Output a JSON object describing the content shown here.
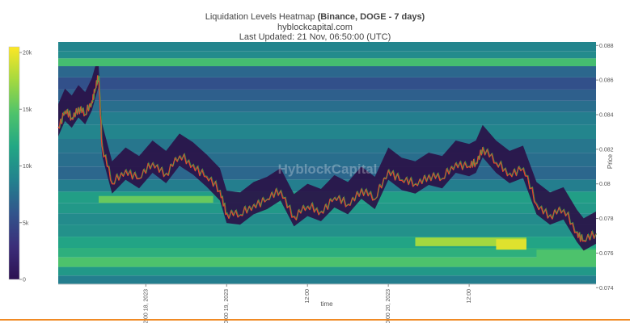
{
  "header": {
    "title_main": "Liquidation Levels Heatmap",
    "title_bold": "(Binance, DOGE - 7 days)",
    "site": "hyblockcapital.com",
    "updated": "Last Updated: 21 Nov, 06:50:00 (UTC)"
  },
  "watermark": "HyblockCapital",
  "chart_data": {
    "type": "heatmap",
    "xlabel": "time",
    "ylabel": "Price",
    "x_range": [
      "2023-11-17 23:00",
      "2023-11-21 06:50"
    ],
    "ylim": [
      0.0742,
      0.0882
    ],
    "x_ticks": [
      {
        "at": "2023-11-18 12:00",
        "label": "12:00",
        "date": "18, 2023"
      },
      {
        "at": "2023-11-19 00:00",
        "label": "00:00",
        "date": "19, 2023"
      },
      {
        "at": "2023-11-19 12:00",
        "label": "12:00",
        "date": ""
      },
      {
        "at": "2023-11-20 00:00",
        "label": "00:00",
        "date": "20, 2023"
      },
      {
        "at": "2023-11-20 12:00",
        "label": "12:00",
        "date": ""
      }
    ],
    "y_ticks": [
      0.074,
      0.076,
      0.078,
      0.08,
      0.082,
      0.084,
      0.086,
      0.088
    ],
    "y_tick_labels": [
      "0.074",
      "0.076",
      "0.078",
      "0.08",
      "0.082",
      "0.084",
      "0.086",
      "0.088"
    ],
    "colorbar": {
      "range": [
        0,
        20500
      ],
      "ticks": [
        0,
        5000,
        10000,
        15000,
        20000
      ],
      "tick_labels": [
        "0",
        "5k",
        "10k",
        "15k",
        "20k"
      ],
      "colors": [
        "#2d1152",
        "#3b2e7a",
        "#31558c",
        "#23828e",
        "#22a784",
        "#4fc36b",
        "#a4d93f",
        "#fde725"
      ]
    },
    "bands": [
      {
        "price": 0.0879,
        "value": 9000
      },
      {
        "price": 0.0874,
        "value": 9500
      },
      {
        "price": 0.0871,
        "value": 14000
      },
      {
        "price": 0.0865,
        "value": 7000
      },
      {
        "price": 0.0858,
        "value": 5500
      },
      {
        "price": 0.0851,
        "value": 6500
      },
      {
        "price": 0.0845,
        "value": 7500
      },
      {
        "price": 0.0838,
        "value": 8500
      },
      {
        "price": 0.083,
        "value": 9000
      },
      {
        "price": 0.0822,
        "value": 8000
      },
      {
        "price": 0.0814,
        "value": 7500
      },
      {
        "price": 0.0806,
        "value": 7000
      },
      {
        "price": 0.0799,
        "value": 8500
      },
      {
        "price": 0.0792,
        "value": 11000
      },
      {
        "price": 0.0786,
        "value": 10500
      },
      {
        "price": 0.078,
        "value": 9500
      },
      {
        "price": 0.0773,
        "value": 10000
      },
      {
        "price": 0.0766,
        "value": 11500
      },
      {
        "price": 0.076,
        "value": 12500
      },
      {
        "price": 0.0755,
        "value": 14500
      },
      {
        "price": 0.0749,
        "value": 10500
      },
      {
        "price": 0.0745,
        "value": 8500
      }
    ],
    "hot_zones": [
      {
        "start": "2023-11-18 05:00",
        "end": "2023-11-18 22:00",
        "price_low": 0.0789,
        "price_high": 0.0793,
        "value": 15500
      },
      {
        "start": "2023-11-20 04:00",
        "end": "2023-11-20 20:30",
        "price_low": 0.0764,
        "price_high": 0.0769,
        "value": 17500
      },
      {
        "start": "2023-11-20 16:00",
        "end": "2023-11-20 20:30",
        "price_low": 0.0762,
        "price_high": 0.0768,
        "value": 19500
      },
      {
        "start": "2023-11-20 22:00",
        "end": "2023-11-21 06:50",
        "price_low": 0.0756,
        "price_high": 0.0762,
        "value": 14500
      }
    ],
    "price": {
      "times": [
        "2023-11-17 23:00",
        "2023-11-18 00:00",
        "2023-11-18 01:00",
        "2023-11-18 02:00",
        "2023-11-18 03:00",
        "2023-11-18 04:00",
        "2023-11-18 04:30",
        "2023-11-18 05:00",
        "2023-11-18 05:30",
        "2023-11-18 07:00",
        "2023-11-18 09:00",
        "2023-11-18 11:00",
        "2023-11-18 13:00",
        "2023-11-18 15:00",
        "2023-11-18 17:00",
        "2023-11-18 19:00",
        "2023-11-18 21:00",
        "2023-11-18 23:00",
        "2023-11-19 00:00",
        "2023-11-19 02:00",
        "2023-11-19 04:00",
        "2023-11-19 06:00",
        "2023-11-19 08:00",
        "2023-11-19 10:00",
        "2023-11-19 12:00",
        "2023-11-19 14:00",
        "2023-11-19 16:00",
        "2023-11-19 18:00",
        "2023-11-19 20:00",
        "2023-11-19 22:00",
        "2023-11-20 00:00",
        "2023-11-20 02:00",
        "2023-11-20 04:00",
        "2023-11-20 06:00",
        "2023-11-20 08:00",
        "2023-11-20 10:00",
        "2023-11-20 12:00",
        "2023-11-20 13:00",
        "2023-11-20 14:00",
        "2023-11-20 16:00",
        "2023-11-20 18:00",
        "2023-11-20 20:00",
        "2023-11-20 22:00",
        "2023-11-21 00:00",
        "2023-11-21 02:00",
        "2023-11-21 04:00",
        "2023-11-21 05:00",
        "2023-11-21 06:50"
      ],
      "values": [
        0.0833,
        0.0842,
        0.0838,
        0.0844,
        0.084,
        0.0848,
        0.0855,
        0.0862,
        0.0822,
        0.08,
        0.0808,
        0.0803,
        0.0812,
        0.0806,
        0.0816,
        0.0811,
        0.0804,
        0.0796,
        0.0783,
        0.0782,
        0.0788,
        0.0791,
        0.0796,
        0.0781,
        0.0787,
        0.0784,
        0.0792,
        0.0788,
        0.0797,
        0.0791,
        0.0808,
        0.0802,
        0.08,
        0.0805,
        0.0803,
        0.0812,
        0.081,
        0.0812,
        0.0821,
        0.0812,
        0.0806,
        0.0809,
        0.0788,
        0.0782,
        0.0785,
        0.0772,
        0.0767,
        0.0771
      ]
    }
  }
}
